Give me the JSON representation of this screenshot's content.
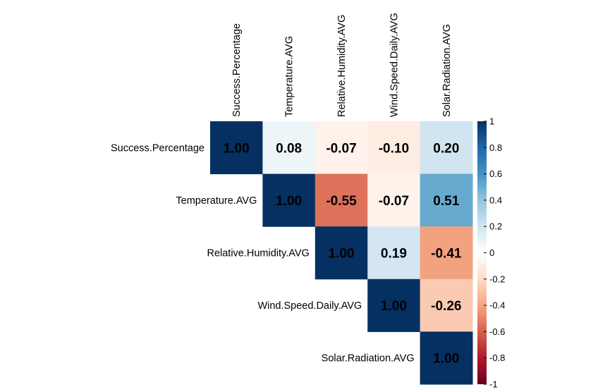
{
  "chart_data": {
    "type": "heatmap",
    "variables": [
      "Success.Percentage",
      "Temperature.AVG",
      "Relative.Humidity.AVG",
      "Wind.Speed.Daily.AVG",
      "Solar.Radiation.AVG"
    ],
    "matrix": [
      [
        1.0,
        0.08,
        -0.07,
        -0.1,
        0.2
      ],
      [
        0.08,
        1.0,
        -0.55,
        -0.07,
        0.51
      ],
      [
        -0.07,
        -0.55,
        1.0,
        0.19,
        -0.41
      ],
      [
        -0.1,
        -0.07,
        0.19,
        1.0,
        -0.26
      ],
      [
        0.2,
        0.51,
        -0.41,
        -0.26,
        1.0
      ]
    ],
    "value_labels": [
      [
        "1.00",
        "0.08",
        "-0.07",
        "-0.10",
        "0.20"
      ],
      [
        "",
        "1.00",
        "-0.55",
        "-0.07",
        "0.51"
      ],
      [
        "",
        "",
        "1.00",
        "0.19",
        "-0.41"
      ],
      [
        "",
        "",
        "",
        "1.00",
        "-0.26"
      ],
      [
        "",
        "",
        "",
        "",
        "1.00"
      ]
    ],
    "display": "upper",
    "colorbar": {
      "range": [
        -1,
        1
      ],
      "tick_labels": [
        "1",
        "0.8",
        "0.6",
        "0.4",
        "0.2",
        "0",
        "-0.2",
        "-0.4",
        "-0.6",
        "-0.8",
        "-1"
      ],
      "tick_values": [
        1,
        0.8,
        0.6,
        0.4,
        0.2,
        0,
        -0.2,
        -0.4,
        -0.6,
        -0.8,
        -1
      ],
      "colors": [
        "#67001F",
        "#B2182B",
        "#D6604D",
        "#F4A582",
        "#FDDBC7",
        "#FFFFFF",
        "#D1E5F0",
        "#92C5DE",
        "#4393C3",
        "#2166AC",
        "#053061"
      ]
    }
  }
}
